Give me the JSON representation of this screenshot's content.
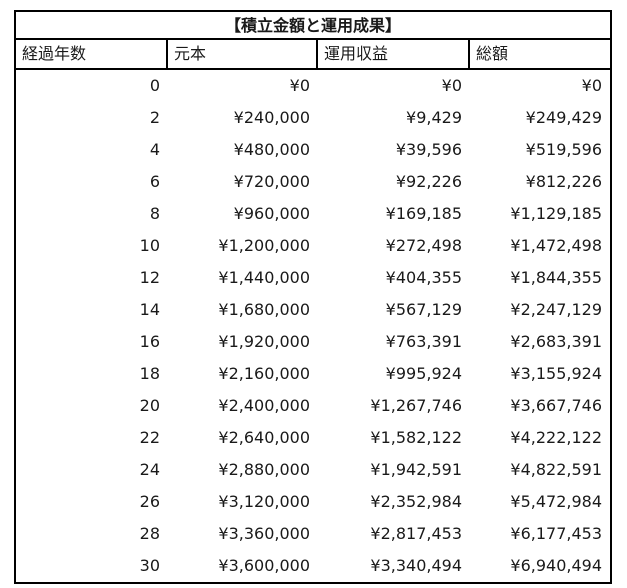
{
  "title": "【積立金額と運用成果】",
  "table": {
    "headers": [
      "経過年数",
      "元本",
      "運用収益",
      "総額"
    ],
    "rows": [
      [
        "0",
        "¥0",
        "¥0",
        "¥0"
      ],
      [
        "2",
        "¥240,000",
        "¥9,429",
        "¥249,429"
      ],
      [
        "4",
        "¥480,000",
        "¥39,596",
        "¥519,596"
      ],
      [
        "6",
        "¥720,000",
        "¥92,226",
        "¥812,226"
      ],
      [
        "8",
        "¥960,000",
        "¥169,185",
        "¥1,129,185"
      ],
      [
        "10",
        "¥1,200,000",
        "¥272,498",
        "¥1,472,498"
      ],
      [
        "12",
        "¥1,440,000",
        "¥404,355",
        "¥1,844,355"
      ],
      [
        "14",
        "¥1,680,000",
        "¥567,129",
        "¥2,247,129"
      ],
      [
        "16",
        "¥1,920,000",
        "¥763,391",
        "¥2,683,391"
      ],
      [
        "18",
        "¥2,160,000",
        "¥995,924",
        "¥3,155,924"
      ],
      [
        "20",
        "¥2,400,000",
        "¥1,267,746",
        "¥3,667,746"
      ],
      [
        "22",
        "¥2,640,000",
        "¥1,582,122",
        "¥4,222,122"
      ],
      [
        "24",
        "¥2,880,000",
        "¥1,942,591",
        "¥4,822,591"
      ],
      [
        "26",
        "¥3,120,000",
        "¥2,352,984",
        "¥5,472,984"
      ],
      [
        "28",
        "¥3,360,000",
        "¥2,817,453",
        "¥6,177,453"
      ],
      [
        "30",
        "¥3,600,000",
        "¥3,340,494",
        "¥6,940,494"
      ]
    ]
  },
  "chart_data": {
    "type": "table",
    "title": "【積立金額と運用成果】",
    "columns": [
      "経過年数",
      "元本",
      "運用収益",
      "総額"
    ],
    "currency": "JPY",
    "rows": [
      [
        0,
        0,
        0,
        0
      ],
      [
        2,
        240000,
        9429,
        249429
      ],
      [
        4,
        480000,
        39596,
        519596
      ],
      [
        6,
        720000,
        92226,
        812226
      ],
      [
        8,
        960000,
        169185,
        1129185
      ],
      [
        10,
        1200000,
        272498,
        1472498
      ],
      [
        12,
        1440000,
        404355,
        1844355
      ],
      [
        14,
        1680000,
        567129,
        2247129
      ],
      [
        16,
        1920000,
        763391,
        2683391
      ],
      [
        18,
        2160000,
        995924,
        3155924
      ],
      [
        20,
        2400000,
        1267746,
        3667746
      ],
      [
        22,
        2640000,
        1582122,
        4222122
      ],
      [
        24,
        2880000,
        1942591,
        4822591
      ],
      [
        26,
        3120000,
        2352984,
        5472984
      ],
      [
        28,
        3360000,
        2817453,
        6177453
      ],
      [
        30,
        3600000,
        3340494,
        6940494
      ]
    ]
  },
  "colors": {
    "border": "#000000",
    "text": "#1a1a1a",
    "background": "#ffffff"
  }
}
